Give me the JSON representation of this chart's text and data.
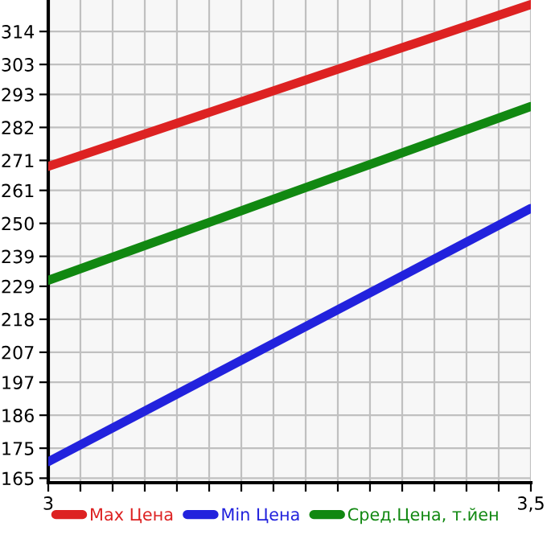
{
  "chart_data": {
    "type": "line",
    "x": [
      3,
      3.5
    ],
    "series": [
      {
        "name": "Max Цена",
        "color": "#dd2222",
        "values": [
          269,
          323
        ]
      },
      {
        "name": "Min Цена",
        "color": "#2222dd",
        "values": [
          170.5,
          255
        ]
      },
      {
        "name": "Сред.Цена, т.йен",
        "color": "#118811",
        "values": [
          231,
          289
        ]
      }
    ],
    "xlim": [
      3,
      3.5
    ],
    "xticks": [
      3,
      {
        "value": 3.0333,
        "label": null
      },
      {
        "value": 3.0667,
        "label": null
      },
      {
        "value": 3.1,
        "label": null
      },
      {
        "value": 3.1333,
        "label": null
      },
      {
        "value": 3.1667,
        "label": null
      },
      {
        "value": 3.2,
        "label": null
      },
      {
        "value": 3.2333,
        "label": null
      },
      {
        "value": 3.2667,
        "label": null
      },
      {
        "value": 3.3,
        "label": null
      },
      {
        "value": 3.3333,
        "label": null
      },
      {
        "value": 3.3667,
        "label": null
      },
      {
        "value": 3.4,
        "label": null
      },
      {
        "value": 3.4333,
        "label": null
      },
      {
        "value": 3.4667,
        "label": null
      },
      {
        "value": 3.5,
        "label": "3,5"
      }
    ],
    "ylim": [
      163.5,
      324.5
    ],
    "yticks": [
      165,
      175,
      186,
      197,
      207,
      218,
      229,
      239,
      250,
      261,
      271,
      282,
      293,
      303,
      314
    ],
    "grid": true,
    "legend": "bottom",
    "marker": "none",
    "line_style": "solid"
  }
}
